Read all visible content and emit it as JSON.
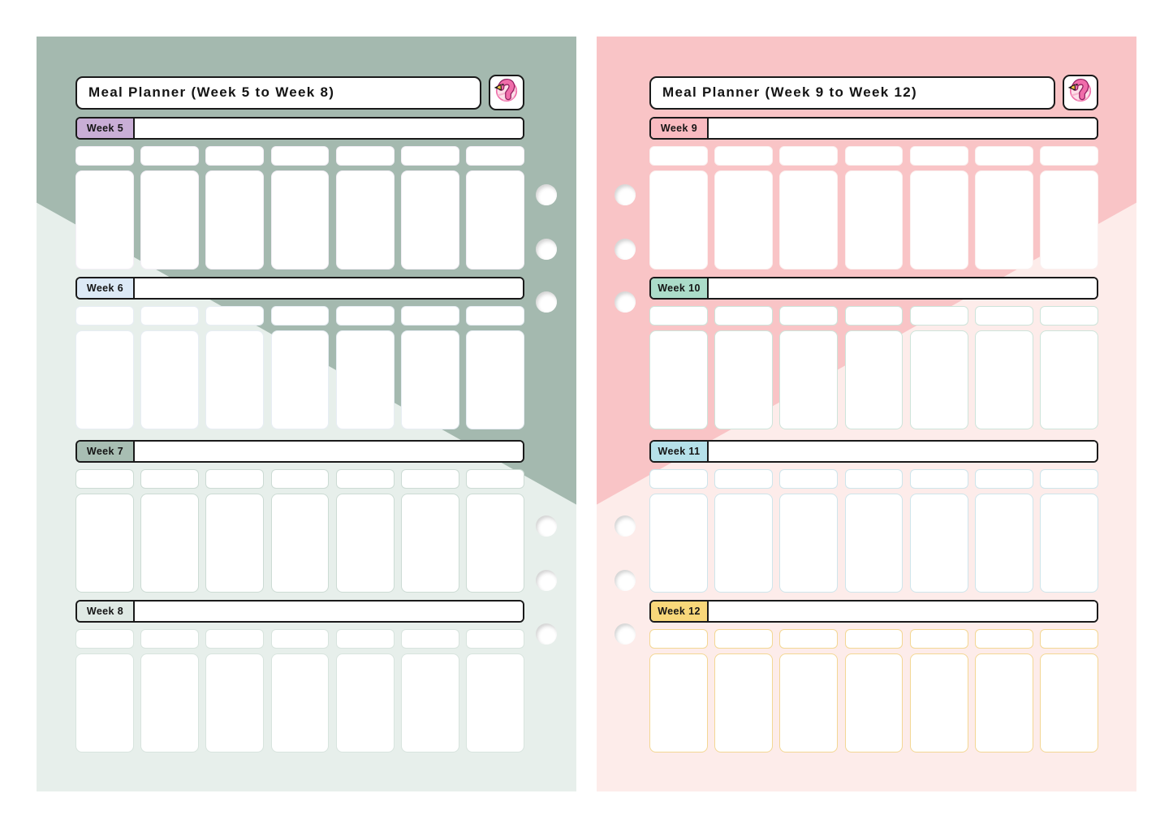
{
  "pages": [
    {
      "title": "Meal Planner (Week 5 to Week 8)",
      "side": "left",
      "colors": {
        "background_top": "#a4b9af",
        "background_bottom": "#e7efeb"
      },
      "weeks": [
        {
          "label": "Week 5",
          "tab_color": "#c9aed6",
          "cell_border_color": "#f3eef6",
          "name_value": ""
        },
        {
          "label": "Week 6",
          "tab_color": "#dce9f6",
          "cell_border_color": "#e7edf4",
          "name_value": ""
        },
        {
          "label": "Week 7",
          "tab_color": "#a8beb3",
          "cell_border_color": "#ccdbd4",
          "name_value": ""
        },
        {
          "label": "Week 8",
          "tab_color": "#dfe9e4",
          "cell_border_color": "#d8e4de",
          "name_value": ""
        }
      ]
    },
    {
      "title": "Meal Planner (Week 9 to Week 12)",
      "side": "right",
      "colors": {
        "background_top": "#f9c4c6",
        "background_bottom": "#fdecea"
      },
      "weeks": [
        {
          "label": "Week 9",
          "tab_color": "#f9bac0",
          "cell_border_color": "#faf1f0",
          "name_value": ""
        },
        {
          "label": "Week 10",
          "tab_color": "#abdcc9",
          "cell_border_color": "#cde4da",
          "name_value": ""
        },
        {
          "label": "Week 11",
          "tab_color": "#b5e0e9",
          "cell_border_color": "#cee5eb",
          "name_value": ""
        },
        {
          "label": "Week 12",
          "tab_color": "#f8d77a",
          "cell_border_color": "#f3d794",
          "name_value": ""
        }
      ]
    }
  ],
  "grid": {
    "columns_per_week": 7,
    "rows_per_week": 2,
    "hole_count_per_page": 6
  },
  "icons": {
    "logo": "flamingo-icon"
  }
}
